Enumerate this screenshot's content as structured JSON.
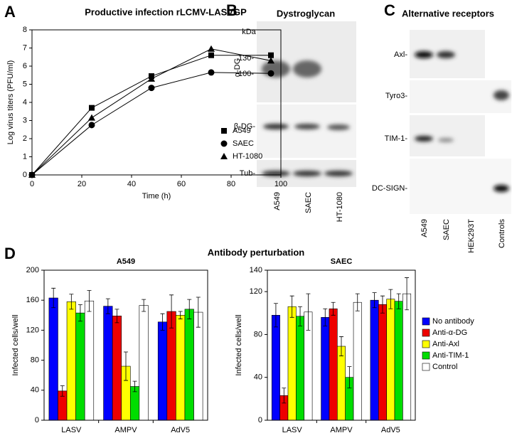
{
  "figure": {
    "letters": [
      "A",
      "B",
      "C",
      "D"
    ],
    "blot_b": {
      "title": "Dystroglycan",
      "unit": "kDa",
      "markers": [
        "130-",
        "100-"
      ],
      "rows": [
        "α-DG",
        "β-DG-",
        "Tub-"
      ],
      "lanes": [
        "A549",
        "SAEC",
        "HT-1080"
      ]
    },
    "blot_c": {
      "title": "Alternative receptors",
      "rows": [
        "Axl-",
        "Tyro3-",
        "TIM-1-",
        "DC-SIGN-"
      ],
      "lanes": [
        "A549",
        "SAEC",
        "HEK293T",
        "Controls"
      ]
    },
    "d_title": "Antibody perturbation"
  },
  "chart_data": [
    {
      "type": "line",
      "title": "Productive infection rLCMV-LASVGP",
      "x_label": "Time (h)",
      "y_label": "Log virus titers (PFU/ml)",
      "x": [
        0,
        24,
        48,
        72,
        96
      ],
      "xlim": [
        0,
        100
      ],
      "xticks": [
        0,
        20,
        40,
        60,
        80,
        100
      ],
      "ylim": [
        0,
        8
      ],
      "yticks": [
        0,
        1,
        2,
        3,
        4,
        5,
        6,
        7,
        8
      ],
      "legend": "lower right",
      "series": [
        {
          "name": "A549",
          "color": "#000000",
          "marker": "square",
          "values": [
            0,
            3.7,
            5.45,
            6.6,
            6.6
          ]
        },
        {
          "name": "SAEC",
          "color": "#000000",
          "marker": "circle",
          "values": [
            0,
            2.75,
            4.8,
            5.65,
            5.6
          ]
        },
        {
          "name": "HT-1080",
          "color": "#000000",
          "marker": "triangle",
          "values": [
            0,
            3.15,
            5.3,
            6.95,
            6.3
          ]
        }
      ]
    },
    {
      "type": "bar",
      "title": "A549",
      "y_label": "Infected cells/well",
      "categories": [
        "LASV",
        "AMPV",
        "AdV5"
      ],
      "ylim": [
        0,
        200
      ],
      "yticks": [
        0,
        40,
        80,
        120,
        160,
        200
      ],
      "series": [
        {
          "name": "No antibody",
          "color": "#0000ff",
          "values": [
            163,
            152,
            131
          ],
          "errors": [
            13,
            10,
            11
          ]
        },
        {
          "name": "Anti-α-DG",
          "color": "#ee0000",
          "values": [
            39,
            139,
            145
          ],
          "errors": [
            7,
            9,
            22
          ]
        },
        {
          "name": "Anti-Axl",
          "color": "#ffff00",
          "values": [
            158,
            72,
            140
          ],
          "errors": [
            10,
            19,
            5
          ]
        },
        {
          "name": "Anti-TIM-1",
          "color": "#00dd00",
          "values": [
            143,
            45,
            148
          ],
          "errors": [
            11,
            7,
            13
          ]
        },
        {
          "name": "Control",
          "color": "#ffffff",
          "values": [
            159,
            153,
            144
          ],
          "errors": [
            14,
            8,
            20
          ]
        }
      ]
    },
    {
      "type": "bar",
      "title": "SAEC",
      "y_label": "Infected cells/well",
      "categories": [
        "LASV",
        "AMPV",
        "AdV5"
      ],
      "ylim": [
        0,
        140
      ],
      "yticks": [
        0,
        40,
        80,
        120,
        140
      ],
      "legend": "right",
      "series": [
        {
          "name": "No antibody",
          "color": "#0000ff",
          "values": [
            98,
            96,
            112
          ],
          "errors": [
            11,
            8,
            7
          ]
        },
        {
          "name": "Anti-α-DG",
          "color": "#ee0000",
          "values": [
            23,
            104,
            108
          ],
          "errors": [
            7,
            6,
            8
          ]
        },
        {
          "name": "Anti-Axl",
          "color": "#ffff00",
          "values": [
            106,
            69,
            113
          ],
          "errors": [
            10,
            9,
            9
          ]
        },
        {
          "name": "Anti-TIM-1",
          "color": "#00dd00",
          "values": [
            97,
            40,
            111
          ],
          "errors": [
            9,
            10,
            7
          ]
        },
        {
          "name": "Control",
          "color": "#ffffff",
          "values": [
            101,
            110,
            118
          ],
          "errors": [
            17,
            8,
            15
          ]
        }
      ]
    }
  ]
}
